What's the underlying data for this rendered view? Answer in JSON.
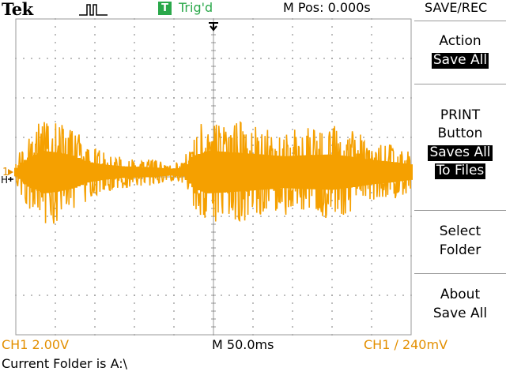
{
  "header": {
    "brand": "Tek",
    "trigger_badge": "T",
    "trigger_status": "Trig'd",
    "horizontal_position": "M Pos: 0.000s",
    "menu_title": "SAVE/REC",
    "acquisition_icon": "run-pulse-icon"
  },
  "side_menu": {
    "action": {
      "label": "Action",
      "value": "Save All"
    },
    "print_button": {
      "line1": "PRINT",
      "line2": "Button",
      "value_line1": "Saves All",
      "value_line2": "To Files"
    },
    "select_folder": {
      "line1": "Select",
      "line2": "Folder"
    },
    "about": {
      "line1": "About",
      "line2": "Save All"
    }
  },
  "waveform": {
    "channel_marker": "1",
    "trigger_marker": "H",
    "trace_color": "#f5a000"
  },
  "status": {
    "ch1_scale": "CH1  2.00V",
    "timebase": "M 50.0ms",
    "trigger_readout": "CH1 ∕ 240mV",
    "message": "Current Folder is A:\\"
  },
  "colors": {
    "trace": "#f5a000",
    "channel_text": "#e38f00",
    "trigger_green": "#2aa84a",
    "grid": "#9a9a9a"
  }
}
